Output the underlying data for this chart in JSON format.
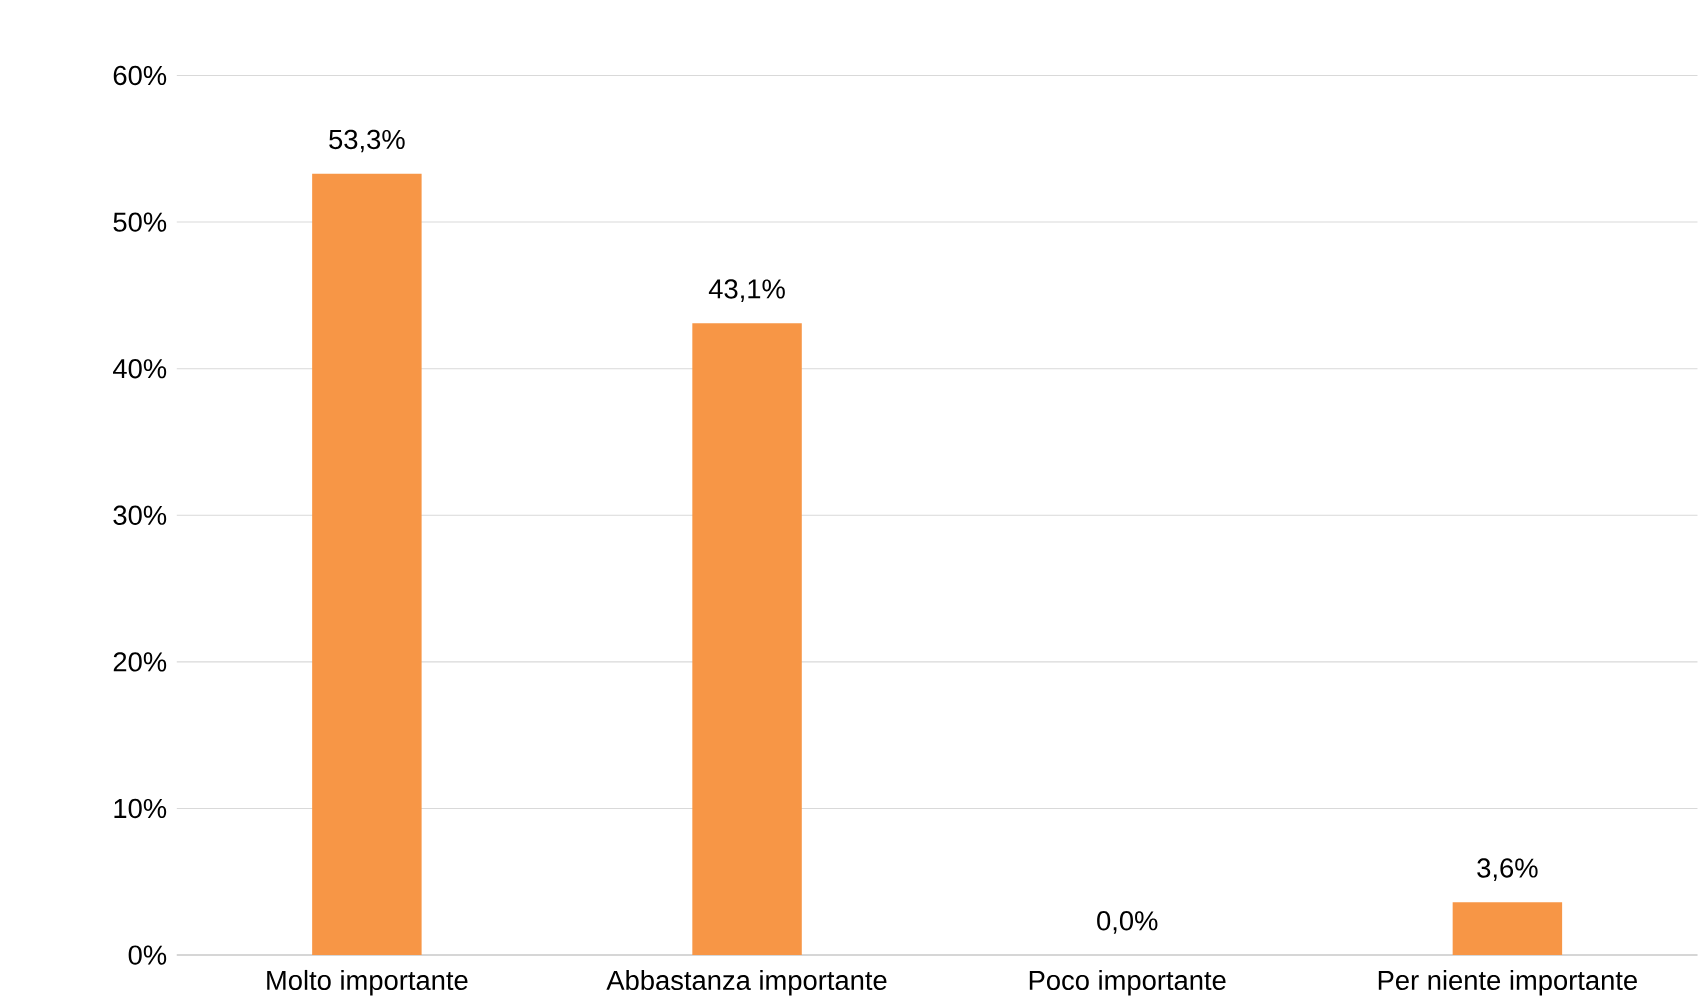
{
  "chart_data": {
    "type": "bar",
    "categories": [
      "Molto importante",
      "Abbastanza importante",
      "Poco importante",
      "Per niente importante"
    ],
    "values": [
      53.3,
      43.1,
      0.0,
      3.6
    ],
    "value_labels": [
      "53,3%",
      "43,1%",
      "0,0%",
      "3,6%"
    ],
    "color": "#f79646",
    "ylim": [
      0,
      60
    ],
    "yticks": [
      {
        "value": 0,
        "label": "0%"
      },
      {
        "value": 10,
        "label": "10%"
      },
      {
        "value": 20,
        "label": "20%"
      },
      {
        "value": 30,
        "label": "30%"
      },
      {
        "value": 40,
        "label": "40%"
      },
      {
        "value": 50,
        "label": "50%"
      },
      {
        "value": 60,
        "label": "60%"
      }
    ],
    "grid": "y"
  }
}
